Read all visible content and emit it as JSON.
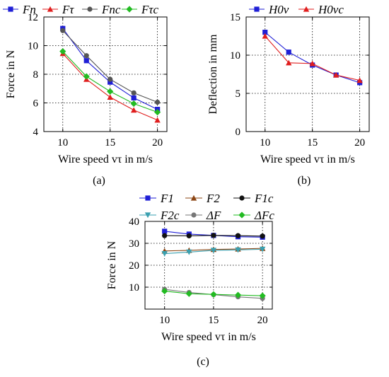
{
  "panels": [
    {
      "id": "a",
      "caption": "(a)",
      "chart_data": {
        "type": "line",
        "xlabel": "Wire speed vτ in m/s",
        "ylabel": "Force in N",
        "xlim": [
          8,
          21
        ],
        "ylim": [
          4,
          12
        ],
        "xticks": [
          10,
          15,
          20
        ],
        "yticks": [
          4,
          6,
          8,
          10,
          12
        ],
        "grid": true,
        "legend_placement": "top",
        "x": [
          10,
          12.5,
          15,
          17.5,
          20
        ],
        "series": [
          {
            "name": "Fn",
            "color": "#1f1fd6",
            "marker": "square",
            "values": [
              11.2,
              8.95,
              7.45,
              6.35,
              5.55
            ]
          },
          {
            "name": "Fτ",
            "color": "#e01e1e",
            "marker": "triangle",
            "values": [
              9.45,
              7.65,
              6.4,
              5.5,
              4.8
            ]
          },
          {
            "name": "Fnc",
            "color": "#555555",
            "marker": "circle",
            "values": [
              11.05,
              9.3,
              7.65,
              6.7,
              6.05
            ]
          },
          {
            "name": "Fτc",
            "color": "#22bb22",
            "marker": "diamond",
            "values": [
              9.6,
              7.85,
              6.8,
              5.95,
              5.35
            ]
          }
        ]
      }
    },
    {
      "id": "b",
      "caption": "(b)",
      "chart_data": {
        "type": "line",
        "xlabel": "Wire speed vτ in m/s",
        "ylabel": "Deflection in mm",
        "xlim": [
          8,
          21
        ],
        "ylim": [
          0,
          15
        ],
        "xticks": [
          10,
          15,
          20
        ],
        "yticks": [
          0,
          5,
          10,
          15
        ],
        "grid": true,
        "legend_placement": "top",
        "x": [
          10,
          12.5,
          15,
          17.5,
          20
        ],
        "series": [
          {
            "name": "H0v",
            "color": "#1f1fd6",
            "marker": "square",
            "values": [
              13.0,
              10.4,
              8.7,
              7.4,
              6.4
            ]
          },
          {
            "name": "H0vc",
            "color": "#e01e1e",
            "marker": "triangle",
            "values": [
              12.5,
              9.0,
              8.9,
              7.4,
              6.7
            ]
          }
        ]
      }
    },
    {
      "id": "c",
      "caption": "(c)",
      "chart_data": {
        "type": "line",
        "xlabel": "Wire speed vτ in m/s",
        "ylabel": "Force in N",
        "xlim": [
          8,
          21
        ],
        "ylim": [
          0,
          40
        ],
        "xticks": [
          10,
          15,
          20
        ],
        "yticks": [
          10,
          20,
          30,
          40
        ],
        "grid": true,
        "legend_placement": "top",
        "x": [
          10,
          12.5,
          15,
          17.5,
          20
        ],
        "series": [
          {
            "name": "F1",
            "color": "#1f1fd6",
            "marker": "square",
            "values": [
              35.5,
              34.2,
              33.6,
              33.0,
              32.8
            ]
          },
          {
            "name": "F2",
            "color": "#8b4513",
            "marker": "triangle",
            "values": [
              26.5,
              26.8,
              27.2,
              27.4,
              27.7
            ]
          },
          {
            "name": "F1c",
            "color": "#111111",
            "marker": "circle",
            "values": [
              33.5,
              33.4,
              33.6,
              33.5,
              33.3
            ]
          },
          {
            "name": "F2c",
            "color": "#3aa0b0",
            "marker": "triangle-down",
            "values": [
              25.3,
              26.0,
              26.8,
              27.0,
              27.3
            ]
          },
          {
            "name": "ΔF",
            "color": "#777777",
            "marker": "circle",
            "values": [
              9.0,
              7.6,
              6.6,
              5.6,
              4.9
            ]
          },
          {
            "name": "ΔFc",
            "color": "#22bb22",
            "marker": "diamond",
            "values": [
              8.2,
              7.0,
              6.7,
              6.4,
              6.1
            ]
          }
        ]
      }
    }
  ]
}
